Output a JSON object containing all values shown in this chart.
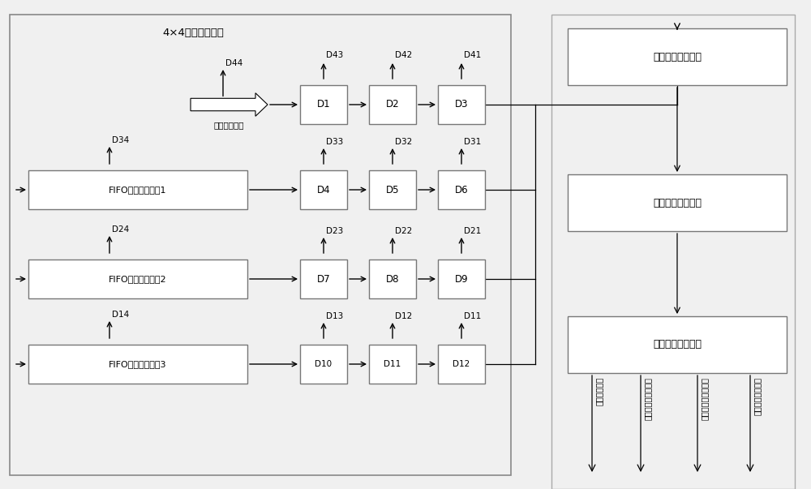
{
  "bg_color": "#f0f0f0",
  "white": "#ffffff",
  "black": "#000000",
  "title_4x4": "4×4邻域生成模块",
  "fifo1_label": "FIFO数据缓存模块1",
  "fifo2_label": "FIFO数据缓存模块2",
  "fifo3_label": "FIFO数据缓存模块3",
  "cubic_label": "三次线性插値模块",
  "video_buf_label": "视频数据缓存模块",
  "video_out_label": "视频数据输出模块",
  "video_input_label": "视频数据输入",
  "out_labels": [
    "视频数据信号",
    "视频数据横坐标信号",
    "视频数据级坐标信号",
    "视频数据有效信号"
  ]
}
